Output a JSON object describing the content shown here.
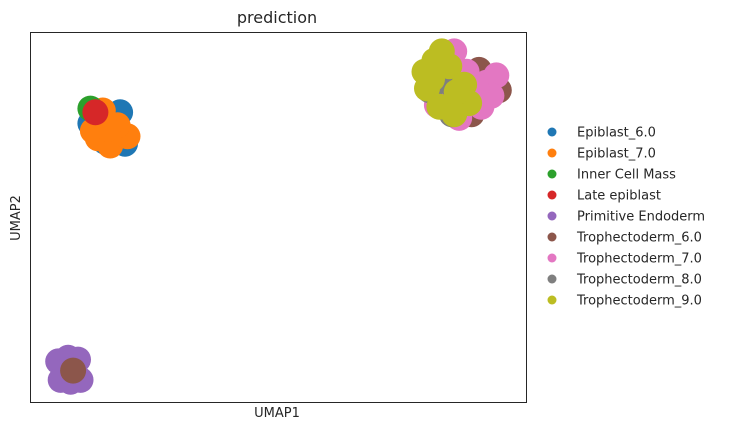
{
  "chart_data": {
    "type": "scatter",
    "title": "prediction",
    "xlabel": "UMAP1",
    "ylabel": "UMAP2",
    "xlim": [
      0,
      100
    ],
    "ylim": [
      0,
      100
    ],
    "grid": false,
    "ticks": false,
    "legend_position": "right",
    "series": [
      {
        "name": "Epiblast_6.0",
        "color": "#1f77b4",
        "points": [
          [
            12.0,
            75.5
          ],
          [
            14.0,
            73.0
          ],
          [
            16.5,
            76.5
          ],
          [
            18.5,
            72.5
          ],
          [
            15.0,
            70.5
          ],
          [
            19.0,
            70.0
          ],
          [
            13.0,
            77.0
          ],
          [
            18.0,
            78.5
          ]
        ]
      },
      {
        "name": "Epiblast_7.0",
        "color": "#ff7f0e",
        "points": [
          [
            13.5,
            71.5
          ],
          [
            16.0,
            69.5
          ],
          [
            19.5,
            72.0
          ],
          [
            14.5,
            79.0
          ],
          [
            17.5,
            75.0
          ],
          [
            12.5,
            73.5
          ],
          [
            15.5,
            74.0
          ]
        ]
      },
      {
        "name": "Inner Cell Mass",
        "color": "#2ca02c",
        "points": [
          [
            12.0,
            79.5
          ]
        ]
      },
      {
        "name": "Late epiblast",
        "color": "#d62728",
        "points": [
          [
            13.0,
            78.5
          ]
        ]
      },
      {
        "name": "Primitive Endoderm",
        "color": "#9467bd",
        "points": [
          [
            5.5,
            11.0
          ],
          [
            7.5,
            12.0
          ],
          [
            9.5,
            11.5
          ],
          [
            6.0,
            6.0
          ],
          [
            8.0,
            5.5
          ],
          [
            10.0,
            6.0
          ],
          [
            7.0,
            8.5
          ]
        ]
      },
      {
        "name": "Trophectoderm_6.0",
        "color": "#8c564b",
        "points": [
          [
            90.5,
            90.0
          ],
          [
            94.5,
            84.5
          ],
          [
            89.0,
            78.0
          ],
          [
            8.5,
            8.5
          ]
        ]
      },
      {
        "name": "Trophectoderm_7.0",
        "color": "#e377c2",
        "points": [
          [
            85.5,
            95.0
          ],
          [
            92.0,
            86.5
          ],
          [
            94.0,
            88.5
          ],
          [
            86.0,
            82.0
          ],
          [
            89.0,
            84.0
          ],
          [
            82.0,
            80.5
          ],
          [
            84.0,
            87.0
          ],
          [
            91.0,
            80.0
          ],
          [
            88.0,
            89.5
          ],
          [
            86.5,
            77.0
          ],
          [
            93.0,
            83.0
          ],
          [
            90.0,
            85.0
          ]
        ]
      },
      {
        "name": "Trophectoderm_8.0",
        "color": "#7f7f7f",
        "points": [
          [
            80.5,
            84.5
          ],
          [
            85.0,
            78.0
          ],
          [
            84.5,
            86.5
          ]
        ]
      },
      {
        "name": "Trophectoderm_9.0",
        "color": "#bcbd22",
        "points": [
          [
            79.5,
            89.5
          ],
          [
            81.5,
            92.5
          ],
          [
            80.0,
            85.0
          ],
          [
            82.5,
            80.0
          ],
          [
            84.5,
            91.0
          ],
          [
            87.5,
            86.0
          ],
          [
            83.0,
            95.0
          ],
          [
            88.5,
            81.0
          ],
          [
            85.5,
            78.0
          ],
          [
            86.0,
            84.0
          ],
          [
            81.0,
            87.5
          ]
        ]
      }
    ]
  }
}
